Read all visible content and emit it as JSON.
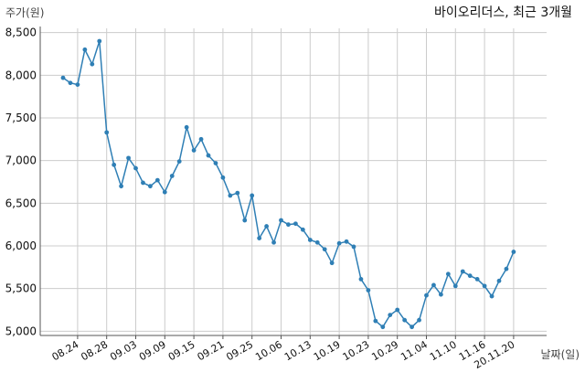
{
  "chart_data": {
    "type": "line",
    "title": "바이오리더스, 최근 3개월",
    "ylabel": "주가(원)",
    "xlabel": "날짜(일)",
    "ylim": [
      4950,
      8550
    ],
    "grid": true,
    "colors": {
      "line": "#2f7fb5",
      "grid": "#cccccc"
    },
    "yticks": [
      {
        "value": 5000,
        "label": "5,000"
      },
      {
        "value": 5500,
        "label": "5,500"
      },
      {
        "value": 6000,
        "label": "6,000"
      },
      {
        "value": 6500,
        "label": "6,500"
      },
      {
        "value": 7000,
        "label": "7,000"
      },
      {
        "value": 7500,
        "label": "7,500"
      },
      {
        "value": 8000,
        "label": "8,000"
      },
      {
        "value": 8500,
        "label": "8,500"
      }
    ],
    "xticks": [
      {
        "index": 2,
        "label": "08.24"
      },
      {
        "index": 6,
        "label": "08.28"
      },
      {
        "index": 10,
        "label": "09.03"
      },
      {
        "index": 14,
        "label": "09.09"
      },
      {
        "index": 18,
        "label": "09.15"
      },
      {
        "index": 22,
        "label": "09.21"
      },
      {
        "index": 26,
        "label": "09.25"
      },
      {
        "index": 30,
        "label": "10.06"
      },
      {
        "index": 34,
        "label": "10.13"
      },
      {
        "index": 38,
        "label": "10.19"
      },
      {
        "index": 42,
        "label": "10.23"
      },
      {
        "index": 46,
        "label": "10.29"
      },
      {
        "index": 50,
        "label": "11.04"
      },
      {
        "index": 54,
        "label": "11.10"
      },
      {
        "index": 58,
        "label": "11.16"
      },
      {
        "index": 62,
        "label": "20.11.20"
      }
    ],
    "series": [
      {
        "values": [
          7970,
          7910,
          7890,
          8300,
          8130,
          8400,
          7330,
          6950,
          6700,
          7030,
          6910,
          6740,
          6700,
          6770,
          6630,
          6820,
          6990,
          7390,
          7120,
          7250,
          7060,
          6970,
          6800,
          6590,
          6620,
          6300,
          6590,
          6090,
          6230,
          6040,
          6300,
          6250,
          6260,
          6190,
          6070,
          6040,
          5960,
          5800,
          6030,
          6050,
          5990,
          5610,
          5480,
          5120,
          5050,
          5190,
          5250,
          5130,
          5050,
          5130,
          5420,
          5540,
          5430,
          5670,
          5530,
          5700,
          5650,
          5610,
          5530,
          5410,
          5590,
          5730,
          5930
        ]
      }
    ]
  }
}
